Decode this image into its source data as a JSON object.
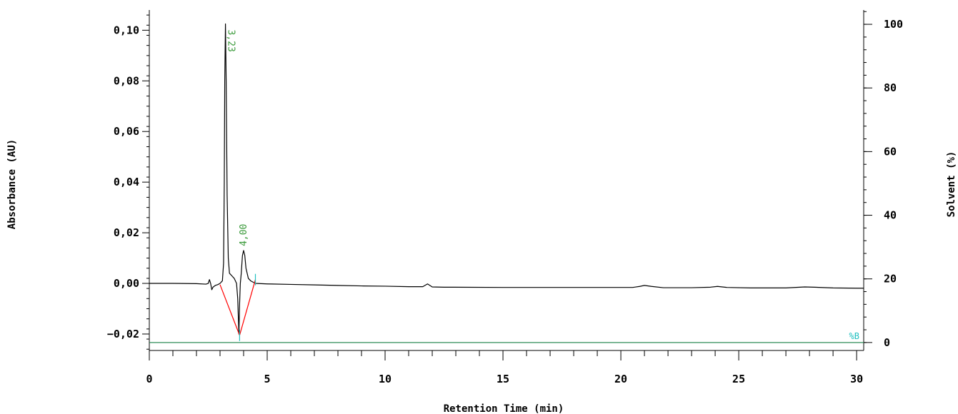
{
  "chart_data": {
    "type": "line",
    "xlabel": "Retention Time (min)",
    "ylabel": "Absorbance (AU)",
    "y2label": "Solvent (%)",
    "xlim": [
      0,
      30.3
    ],
    "ylim": [
      -0.0265,
      0.108
    ],
    "y2lim": [
      -2.5,
      104.5
    ],
    "x_ticks": [
      0,
      5,
      10,
      15,
      20,
      25,
      30
    ],
    "x_tick_labels": [
      "0",
      "5",
      "10",
      "15",
      "20",
      "25",
      "30"
    ],
    "y_ticks": [
      -0.02,
      0.0,
      0.02,
      0.04,
      0.06,
      0.08,
      0.1
    ],
    "y_tick_labels": [
      "−0,02",
      "0,00",
      "0,02",
      "0,04",
      "0,06",
      "0,08",
      "0,10"
    ],
    "y2_ticks": [
      0,
      20,
      40,
      60,
      80,
      100
    ],
    "y2_tick_labels": [
      "0",
      "20",
      "40",
      "60",
      "80",
      "100"
    ],
    "grid": false,
    "series": [
      {
        "color": "#000000",
        "x": [
          0.0,
          1.0,
          2.0,
          2.4,
          2.5,
          2.55,
          2.6,
          2.65,
          2.7,
          2.8,
          2.9,
          3.0,
          3.1,
          3.15,
          3.18,
          3.2,
          3.23,
          3.26,
          3.3,
          3.35,
          3.4,
          3.5,
          3.6,
          3.7,
          3.75,
          3.8,
          3.83,
          3.86,
          3.9,
          3.95,
          4.0,
          4.05,
          4.1,
          4.2,
          4.3,
          4.5,
          5.0,
          6.0,
          7.0,
          8.0,
          9.0,
          10.0,
          11.0,
          11.6,
          11.8,
          12.0,
          12.5,
          15.0,
          18.0,
          20.5,
          20.8,
          21.0,
          21.3,
          21.8,
          23.0,
          23.8,
          24.1,
          24.5,
          25.5,
          27.0,
          27.8,
          28.2,
          29.0,
          30.0,
          30.3
        ],
        "y": [
          0.0,
          0.0,
          -0.0001,
          -0.0003,
          0.0,
          0.0015,
          0.0,
          -0.0025,
          -0.0015,
          -0.0008,
          -0.0005,
          0.0,
          0.001,
          0.008,
          0.04,
          0.08,
          0.1025,
          0.08,
          0.035,
          0.01,
          0.004,
          0.003,
          0.002,
          0.0,
          -0.006,
          -0.02,
          -0.008,
          0.0,
          0.004,
          0.011,
          0.013,
          0.011,
          0.006,
          0.002,
          0.001,
          0.0,
          -0.0002,
          -0.0004,
          -0.0006,
          -0.0008,
          -0.001,
          -0.0011,
          -0.0013,
          -0.0013,
          -0.0002,
          -0.0014,
          -0.0015,
          -0.0016,
          -0.0016,
          -0.0016,
          -0.0012,
          -0.0008,
          -0.0012,
          -0.0017,
          -0.0017,
          -0.0015,
          -0.0012,
          -0.0016,
          -0.0018,
          -0.0018,
          -0.0014,
          -0.0015,
          -0.0018,
          -0.0019,
          -0.0019
        ]
      },
      {
        "name": "%B",
        "color": "#2e8b57",
        "axis": "right",
        "x": [
          0,
          30.3
        ],
        "y": [
          0,
          0
        ]
      }
    ],
    "baselines": [
      {
        "color": "#ff0000",
        "x": [
          3.0,
          3.83,
          4.5
        ],
        "y": [
          -0.0005,
          -0.0205,
          0.0015
        ]
      }
    ],
    "peaks": [
      {
        "label": "3,23",
        "x": 3.23,
        "y": 0.1025,
        "color": "#3a9a3a"
      },
      {
        "label": "4,00",
        "x": 4.0,
        "y": 0.013,
        "color": "#3a9a3a"
      }
    ],
    "peak_markers": [
      {
        "x": 3.83,
        "y": -0.0205,
        "color": "#20c0c0"
      },
      {
        "x": 4.5,
        "y": 0.0015,
        "color": "#20c0c0"
      }
    ],
    "series_label_color": "#20c0c0"
  }
}
